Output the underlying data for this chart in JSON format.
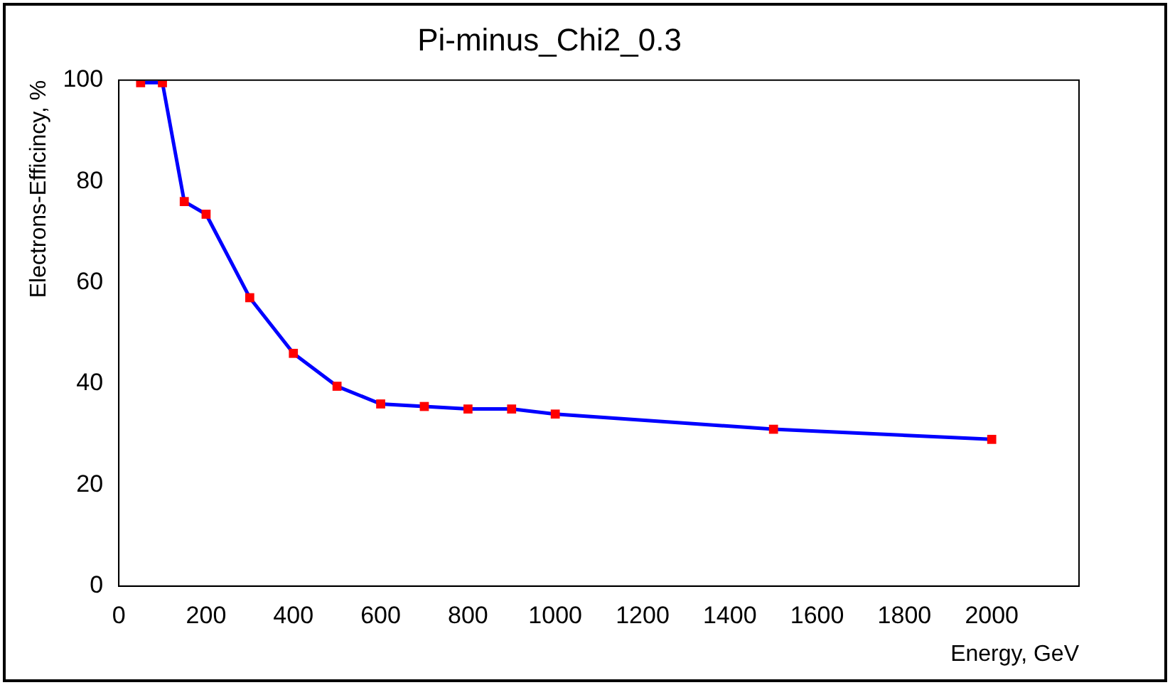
{
  "chart_data": {
    "type": "line",
    "title": "Pi-minus_Chi2_0.3",
    "xlabel": "Energy, GeV",
    "ylabel": "Electrons-Efficincy, %",
    "x": [
      50,
      100,
      150,
      200,
      300,
      400,
      500,
      600,
      700,
      800,
      900,
      1000,
      1500,
      2000
    ],
    "series": [
      {
        "color": "#0000ff",
        "values": [
          99.5,
          99.5,
          76,
          73.5,
          57,
          46,
          39.5,
          36,
          35.5,
          35,
          35,
          34,
          31,
          29
        ]
      }
    ],
    "marker": "square",
    "line_style": "solid",
    "grid": false,
    "legend": false,
    "xlim": [
      0,
      2200
    ],
    "xticks": [
      0,
      200,
      400,
      600,
      800,
      1000,
      1200,
      1400,
      1600,
      1800,
      2000
    ],
    "ylim": [
      0,
      100
    ],
    "yticks": [
      0,
      20,
      40,
      60,
      80,
      100
    ]
  }
}
